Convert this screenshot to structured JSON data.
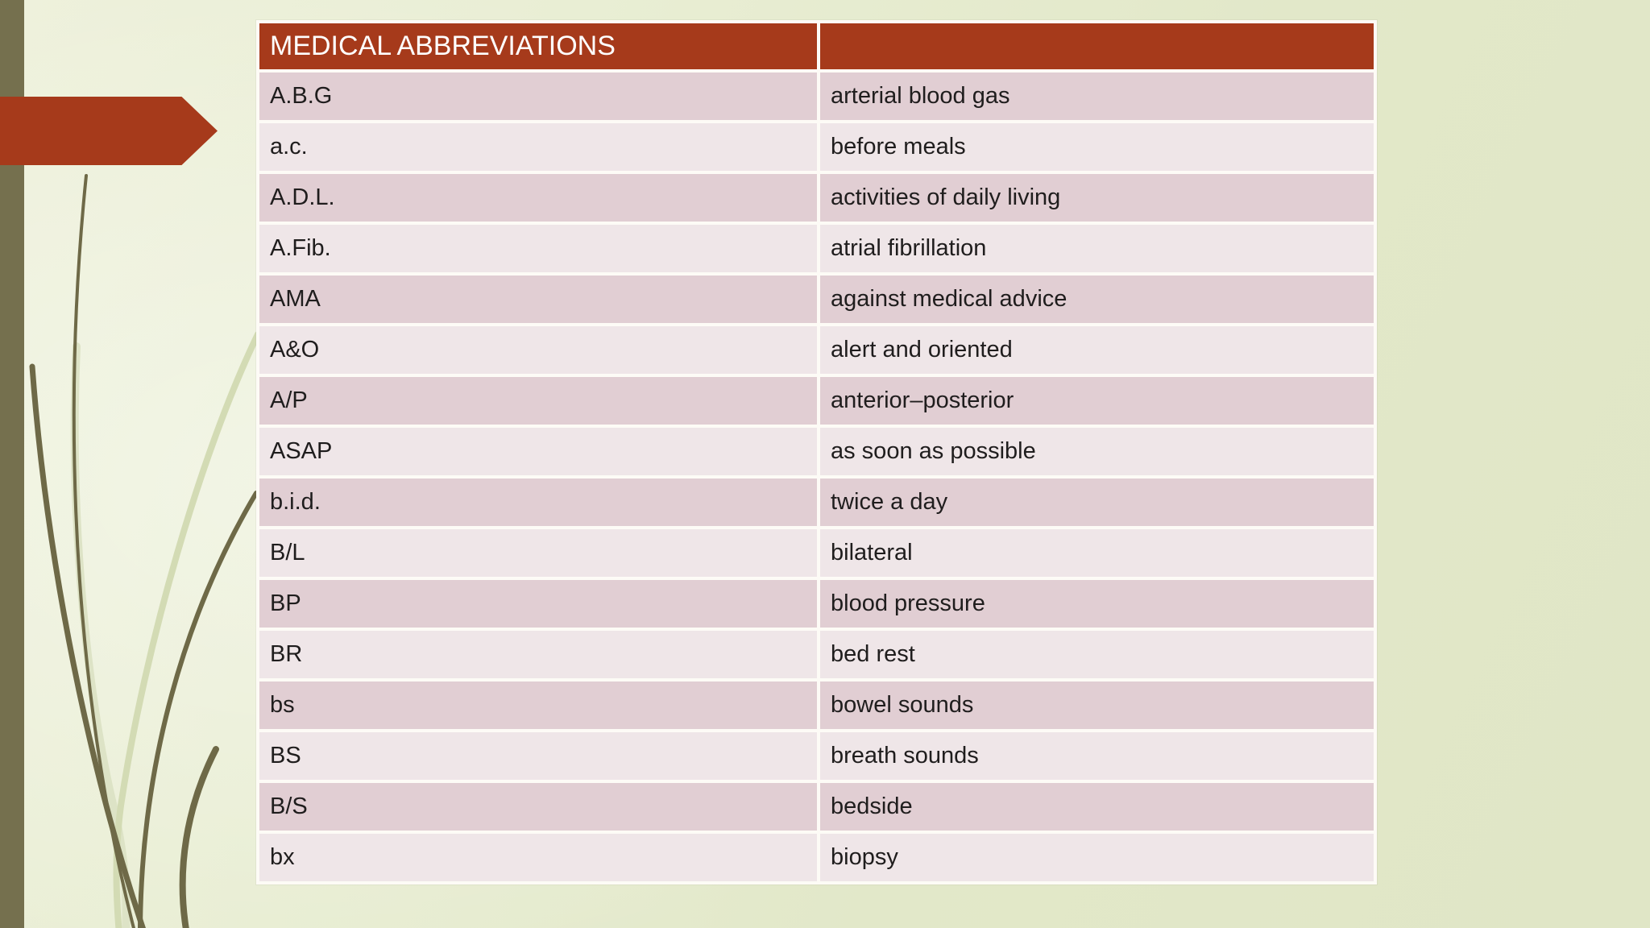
{
  "slide": {
    "kind": "presentation-slide",
    "table": {
      "header": {
        "title": "MEDICAL ABBREVIATIONS",
        "right": ""
      },
      "rows": [
        {
          "abbr": "A.B.G",
          "meaning": "arterial blood gas"
        },
        {
          "abbr": "a.c.",
          "meaning": "before meals"
        },
        {
          "abbr": "A.D.L.",
          "meaning": "activities of daily living"
        },
        {
          "abbr": "A.Fib.",
          "meaning": "atrial fibrillation"
        },
        {
          "abbr": "AMA",
          "meaning": "against medical advice"
        },
        {
          "abbr": "A&O",
          "meaning": "alert and oriented"
        },
        {
          "abbr": "A/P",
          "meaning": "anterior–posterior"
        },
        {
          "abbr": "ASAP",
          "meaning": "as soon as possible"
        },
        {
          "abbr": "b.i.d.",
          "meaning": "twice a day"
        },
        {
          "abbr": "B/L",
          "meaning": "bilateral"
        },
        {
          "abbr": "BP",
          "meaning": "blood pressure"
        },
        {
          "abbr": "BR",
          "meaning": "bed rest"
        },
        {
          "abbr": "bs",
          "meaning": "bowel sounds"
        },
        {
          "abbr": "BS",
          "meaning": "breath sounds"
        },
        {
          "abbr": "B/S",
          "meaning": "bedside"
        },
        {
          "abbr": "bx",
          "meaning": "biopsy"
        }
      ]
    },
    "decor": {
      "arrow_icon": "right-arrow-pointer",
      "grass_icon": "grass-blades",
      "sidebar_icon": "olive-side-bar"
    },
    "colors": {
      "header_red": "#a63a1b",
      "arrow_red": "#a63a1b",
      "row_dark_pink": "#e1ced3",
      "row_light_pink": "#efe6e8",
      "table_border_white": "#fdfbf6",
      "background_green": "#e4e9cc",
      "olive_bar": "#75704e",
      "grass_dark": "#6e6947",
      "grass_light": "#d3dbb4",
      "header_text": "#ffffff",
      "body_text": "#1f1d1d"
    }
  }
}
